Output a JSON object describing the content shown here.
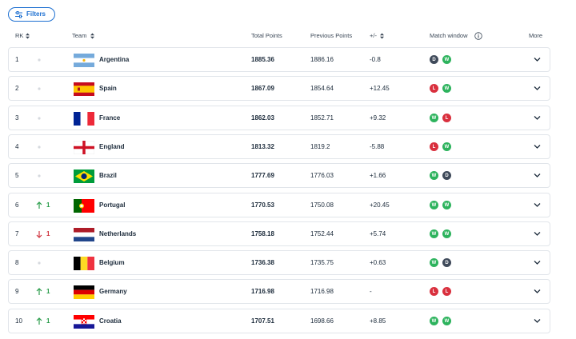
{
  "filters": "Filters",
  "headers": {
    "rank": "RK",
    "team": "Team",
    "total_points": "Total Points",
    "previous_points": "Previous Points",
    "change": "+/-",
    "match_window": "Match window",
    "more": "More"
  },
  "rows": [
    {
      "rank": "1",
      "movement": null,
      "team": "Argentina",
      "total_points": "1885.36",
      "previous_points": "1886.16",
      "change": "-0.8",
      "match_window": [
        "D",
        "W"
      ]
    },
    {
      "rank": "2",
      "movement": null,
      "team": "Spain",
      "total_points": "1867.09",
      "previous_points": "1854.64",
      "change": "+12.45",
      "match_window": [
        "L",
        "W"
      ]
    },
    {
      "rank": "3",
      "movement": null,
      "team": "France",
      "total_points": "1862.03",
      "previous_points": "1852.71",
      "change": "+9.32",
      "match_window": [
        "W",
        "L"
      ]
    },
    {
      "rank": "4",
      "movement": null,
      "team": "England",
      "total_points": "1813.32",
      "previous_points": "1819.2",
      "change": "-5.88",
      "match_window": [
        "L",
        "W"
      ]
    },
    {
      "rank": "5",
      "movement": null,
      "team": "Brazil",
      "total_points": "1777.69",
      "previous_points": "1776.03",
      "change": "+1.66",
      "match_window": [
        "W",
        "D"
      ]
    },
    {
      "rank": "6",
      "movement": {
        "direction": "up",
        "value": "1"
      },
      "team": "Portugal",
      "total_points": "1770.53",
      "previous_points": "1750.08",
      "change": "+20.45",
      "match_window": [
        "W",
        "W"
      ]
    },
    {
      "rank": "7",
      "movement": {
        "direction": "down",
        "value": "1"
      },
      "team": "Netherlands",
      "total_points": "1758.18",
      "previous_points": "1752.44",
      "change": "+5.74",
      "match_window": [
        "W",
        "W"
      ]
    },
    {
      "rank": "8",
      "movement": null,
      "team": "Belgium",
      "total_points": "1736.38",
      "previous_points": "1735.75",
      "change": "+0.63",
      "match_window": [
        "W",
        "D"
      ]
    },
    {
      "rank": "9",
      "movement": {
        "direction": "up",
        "value": "1"
      },
      "team": "Germany",
      "total_points": "1716.98",
      "previous_points": "1716.98",
      "change": "-",
      "match_window": [
        "L",
        "L"
      ]
    },
    {
      "rank": "10",
      "movement": {
        "direction": "up",
        "value": "1"
      },
      "team": "Croatia",
      "total_points": "1707.51",
      "previous_points": "1698.66",
      "change": "+8.85",
      "match_window": [
        "W",
        "W"
      ]
    }
  ]
}
